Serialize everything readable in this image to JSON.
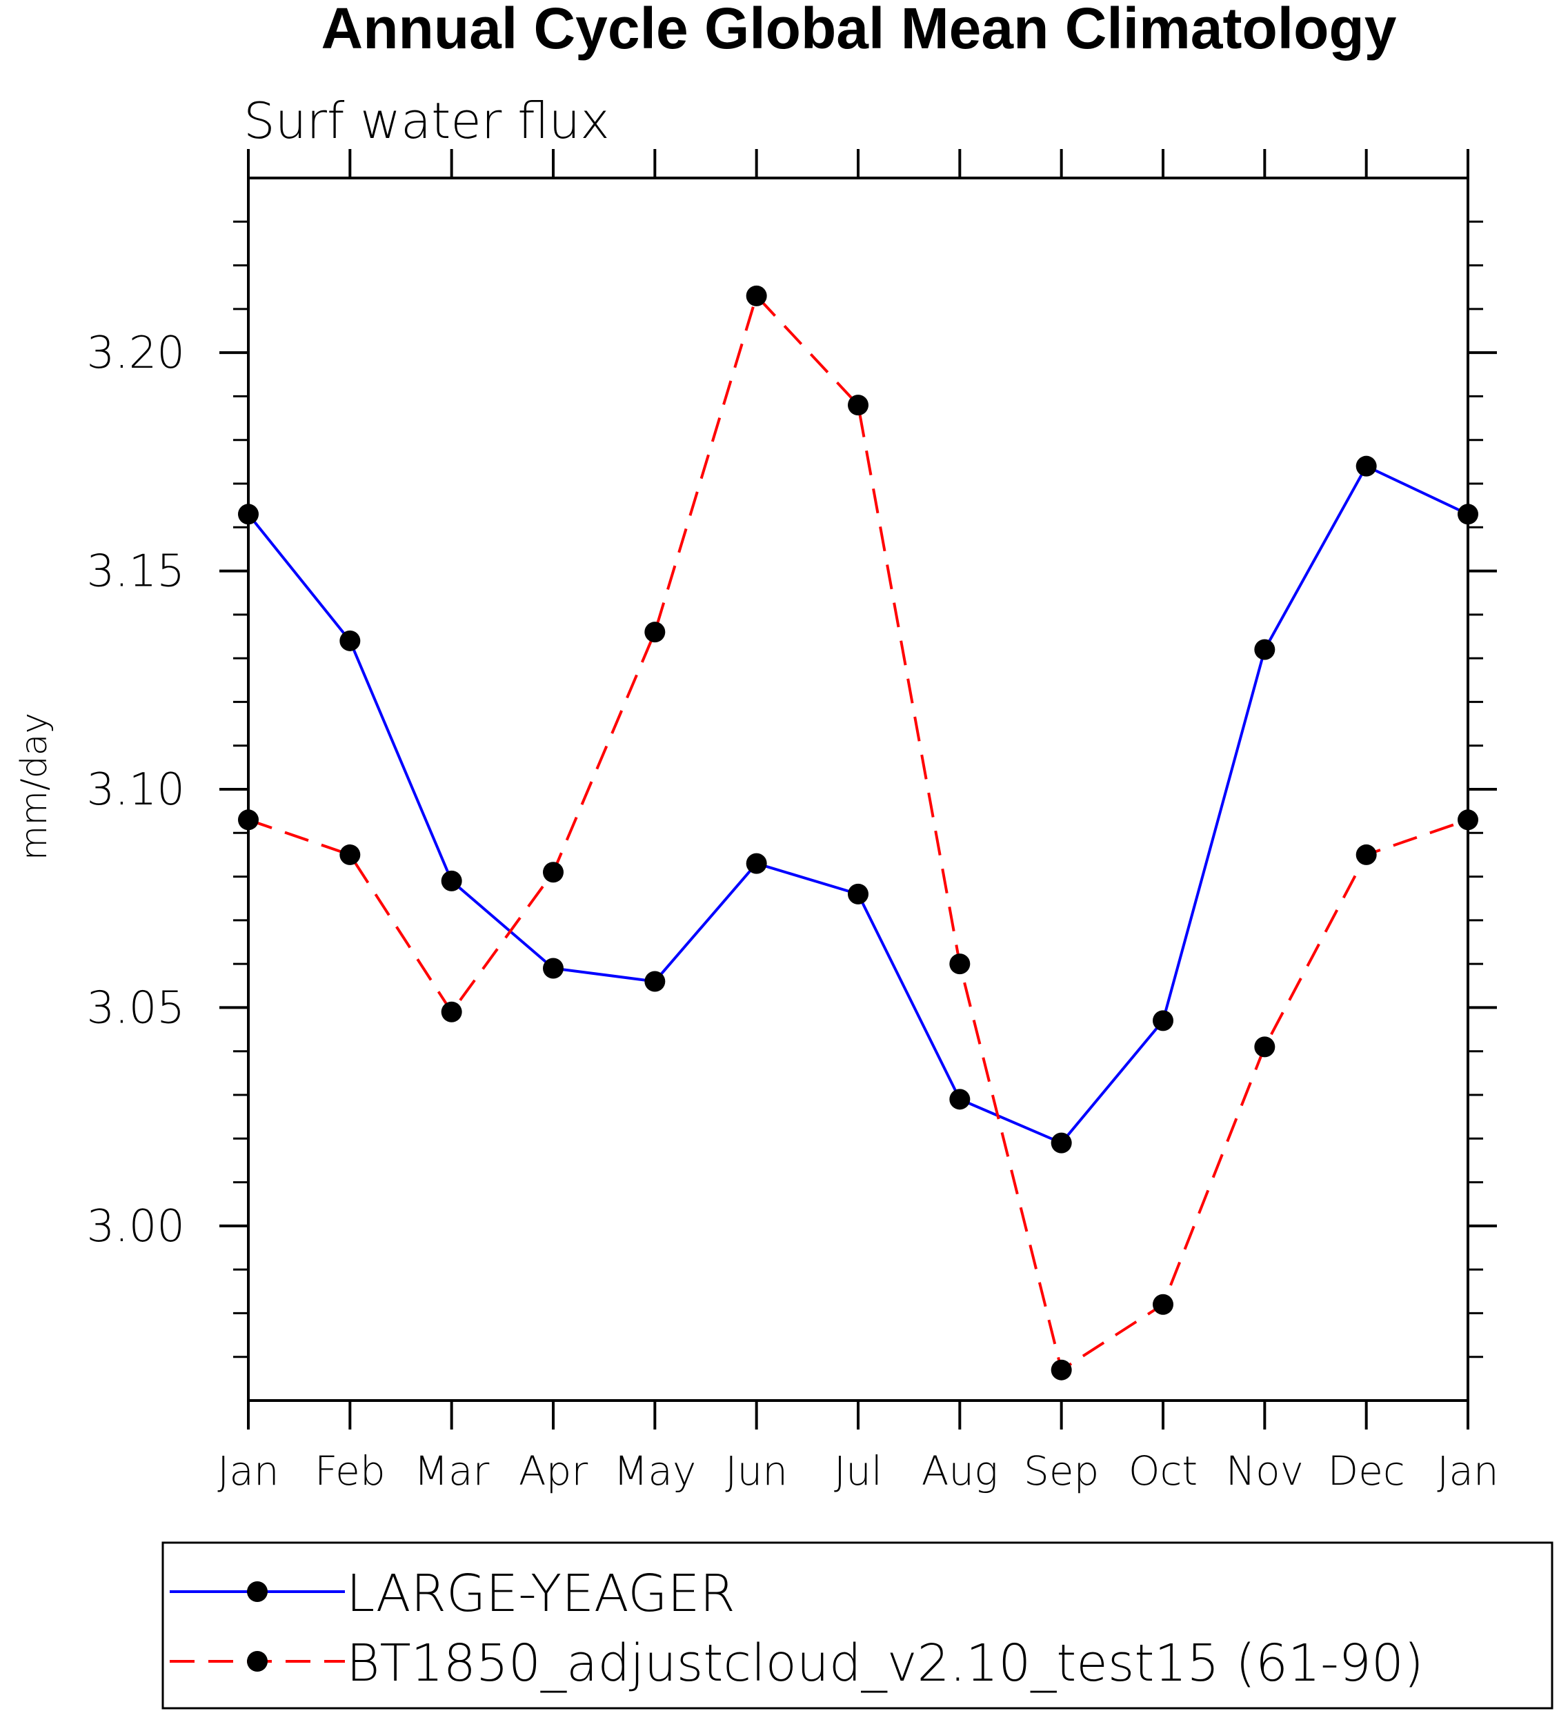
{
  "chart_data": {
    "type": "line",
    "title": "Annual Cycle Global Mean Climatology",
    "subtitle": "Surf water flux",
    "ylabel": "mm/day",
    "xlabel": "",
    "categories": [
      "Jan",
      "Feb",
      "Mar",
      "Apr",
      "May",
      "Jun",
      "Jul",
      "Aug",
      "Sep",
      "Oct",
      "Nov",
      "Dec",
      "Jan"
    ],
    "ylim": [
      2.96,
      3.24
    ],
    "yticks": [
      3.0,
      3.05,
      3.1,
      3.15,
      3.2
    ],
    "ytick_labels": [
      "3.00",
      "3.05",
      "3.10",
      "3.15",
      "3.20"
    ],
    "y_minor_step": 0.01,
    "grid": false,
    "legend_position": "bottom",
    "series": [
      {
        "name": "LARGE-YEAGER",
        "color": "#0000ff",
        "line_style": "solid",
        "marker": "filled-circle",
        "values": [
          3.163,
          3.134,
          3.079,
          3.059,
          3.056,
          3.083,
          3.076,
          3.029,
          3.019,
          3.047,
          3.132,
          3.174,
          3.163
        ]
      },
      {
        "name": "BT1850_adjustcloud_v2.10_test15 (61-90)",
        "color": "#ff0000",
        "line_style": "dashed",
        "marker": "filled-circle",
        "values": [
          3.093,
          3.085,
          3.049,
          3.081,
          3.136,
          3.213,
          3.188,
          3.06,
          2.967,
          2.982,
          3.041,
          3.085,
          3.093
        ]
      }
    ]
  }
}
